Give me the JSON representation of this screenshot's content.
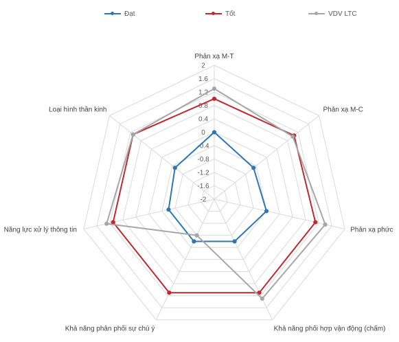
{
  "chart_data": {
    "type": "radar",
    "title": "",
    "axes": [
      "Phản xạ M-T",
      "Phản xạ M-C",
      "Phản xạ phức",
      "Khả năng phối hợp vận động (chấm)",
      "Khả năng phân phối sự chú ý",
      "Năng lực xử lý thông tin",
      "Loại hình thần kinh"
    ],
    "ticks": [
      "2",
      "1.6",
      "1.2",
      "0.8",
      "0.4",
      "0",
      "-0.4",
      "-0.8",
      "-1.2",
      "-1.6",
      "-2"
    ],
    "range": [
      -2,
      2
    ],
    "grid": true,
    "legend_position": "top",
    "series": [
      {
        "name": "Đạt",
        "color": "#2E75B6",
        "values": [
          0,
          -0.5,
          -0.4,
          -0.6,
          -0.6,
          -0.6,
          -0.5
        ]
      },
      {
        "name": "Tốt",
        "color": "#C0282D",
        "values": [
          1.0,
          1.05,
          1.1,
          1.1,
          1.1,
          1.1,
          1.1
        ]
      },
      {
        "name": "VDV LTC",
        "color": "#A6A6A6",
        "values": [
          1.3,
          1.0,
          1.4,
          1.3,
          -0.8,
          1.3,
          1.1
        ]
      }
    ]
  }
}
